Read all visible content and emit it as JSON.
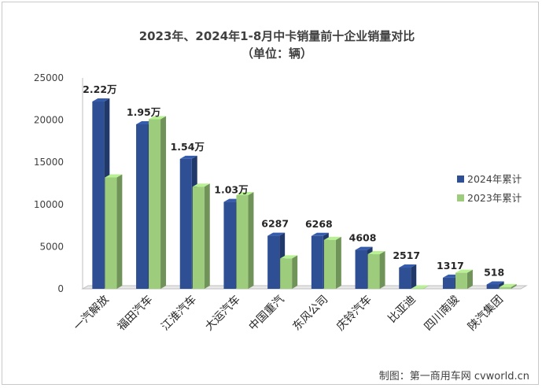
{
  "chart_data": {
    "type": "bar",
    "title": "2023年、2024年1-8月中卡销量前十企业销量对比",
    "subtitle": "（单位：辆）",
    "categories": [
      "一汽解放",
      "福田汽车",
      "江淮汽车",
      "大运汽车",
      "中国重汽",
      "东风公司",
      "庆铃汽车",
      "比亚迪",
      "四川南骏",
      "陕汽集团"
    ],
    "series": [
      {
        "name": "2024年累计",
        "color": "#2e4f93",
        "values": [
          22200,
          19500,
          15400,
          10300,
          6287,
          6268,
          4608,
          2517,
          1317,
          518
        ]
      },
      {
        "name": "2023年累计",
        "color": "#9ccc7c",
        "values": [
          13200,
          20100,
          12100,
          11100,
          3600,
          5800,
          4100,
          30,
          1900,
          200
        ]
      }
    ],
    "data_labels": [
      "2.22万",
      "1.95万",
      "1.54万",
      "1.03万",
      "6287",
      "6268",
      "4608",
      "2517",
      "1317",
      "518"
    ],
    "ylim": [
      0,
      25000
    ],
    "yticks": [
      "0",
      "5000",
      "10000",
      "15000",
      "20000",
      "25000"
    ],
    "grid": false,
    "legend_position": "right",
    "credit": "制图：第一商用车网 cvworld.cn"
  }
}
